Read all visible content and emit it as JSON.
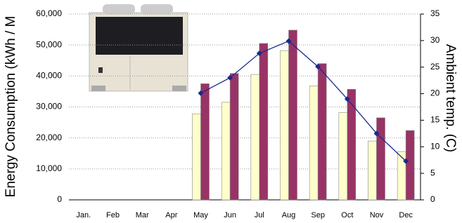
{
  "chart_data": {
    "type": "bar-line",
    "y_label": "Energy Consumption (kWh / M",
    "y2_label": "Ambient temp. (C)",
    "categories": [
      "Jan.",
      "Feb",
      "Mar",
      "Apr",
      "May",
      "Jun",
      "Jul",
      "Aug",
      "Sep",
      "Oct",
      "Nov",
      "Dec"
    ],
    "series": [
      {
        "type": "bar",
        "color": "#ffffcc",
        "values": [
          null,
          null,
          null,
          null,
          27800,
          31500,
          40500,
          48200,
          36800,
          28200,
          19000,
          15600
        ]
      },
      {
        "type": "bar",
        "color": "#993366",
        "values": [
          null,
          null,
          null,
          null,
          37500,
          40800,
          50500,
          54800,
          44000,
          35700,
          26500,
          22400
        ]
      },
      {
        "type": "line",
        "axis": "y2",
        "color": "#1a2a8c",
        "values": [
          null,
          null,
          null,
          null,
          20.1,
          23,
          27.6,
          29.9,
          25.1,
          19,
          12.5,
          7.3
        ]
      }
    ],
    "ylim": [
      0,
      60000
    ],
    "yticks": [
      0,
      {
        "value": 10000,
        "label": "10,000"
      },
      {
        "value": 20000,
        "label": "20,000"
      },
      {
        "value": 30000,
        "label": "30,000"
      },
      {
        "value": 40000,
        "label": "40,000"
      },
      {
        "value": 50000,
        "label": "50,000"
      },
      {
        "value": 60000,
        "label": "60,000"
      }
    ],
    "y2lim": [
      0,
      35
    ],
    "y2ticks": [
      0,
      5,
      10,
      15,
      20,
      25,
      30,
      35
    ],
    "grid": true
  }
}
